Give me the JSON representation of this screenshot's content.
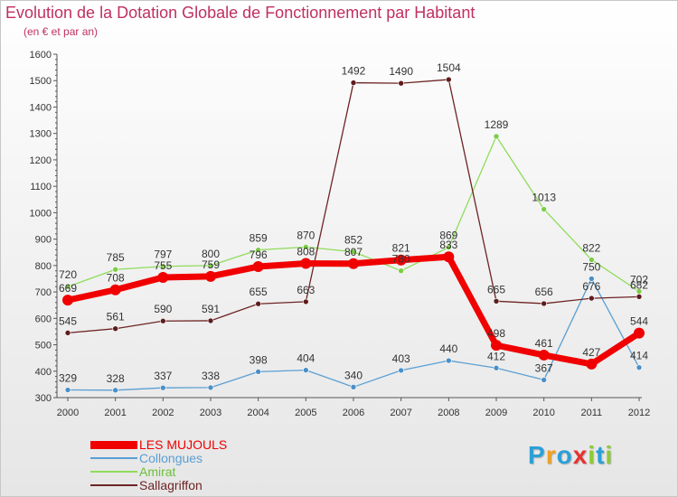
{
  "chart_data": {
    "type": "line",
    "title": "Evolution de la Dotation Globale de Fonctionnement par Habitant",
    "subtitle": "(en € et par an)",
    "xlabel": "",
    "ylabel": "",
    "ylim": [
      300,
      1600
    ],
    "yticks": [
      300,
      400,
      500,
      600,
      700,
      800,
      900,
      1000,
      1100,
      1200,
      1300,
      1400,
      1500,
      1600
    ],
    "categories": [
      "2000",
      "2001",
      "2002",
      "2003",
      "2004",
      "2005",
      "2006",
      "2007",
      "2008",
      "2009",
      "2010",
      "2011",
      "2012"
    ],
    "series": [
      {
        "name": "Collongues",
        "color": "#5a9fd4",
        "values": [
          329,
          328,
          337,
          338,
          398,
          404,
          340,
          403,
          440,
          412,
          367,
          750,
          414
        ]
      },
      {
        "name": "Amirat",
        "color": "#8fdc5a",
        "values": [
          720,
          785,
          797,
          800,
          859,
          870,
          852,
          780,
          869,
          1289,
          1013,
          822,
          702
        ]
      },
      {
        "name": "Sallagriffon",
        "color": "#6e2424",
        "values": [
          545,
          561,
          590,
          591,
          655,
          663,
          1492,
          1490,
          1504,
          665,
          656,
          676,
          682
        ]
      },
      {
        "name": "LES MUJOULS",
        "color": "#f00000",
        "values": [
          669,
          708,
          755,
          759,
          796,
          808,
          807,
          821,
          833,
          498,
          461,
          427,
          544
        ]
      }
    ],
    "legend_order": [
      "LES MUJOULS",
      "Collongues",
      "Amirat",
      "Sallagriffon"
    ],
    "legend_position": "bottom-left",
    "grid": false
  },
  "logo": {
    "text": "Proxiti",
    "letters": [
      "P",
      "r",
      "o",
      "x",
      "i",
      "t",
      "i"
    ],
    "colors": [
      "#2aa0d8",
      "#f0a020",
      "#2aa0d8",
      "#e83030",
      "#8ccc30",
      "#2aa0d8",
      "#8ccc30"
    ]
  }
}
